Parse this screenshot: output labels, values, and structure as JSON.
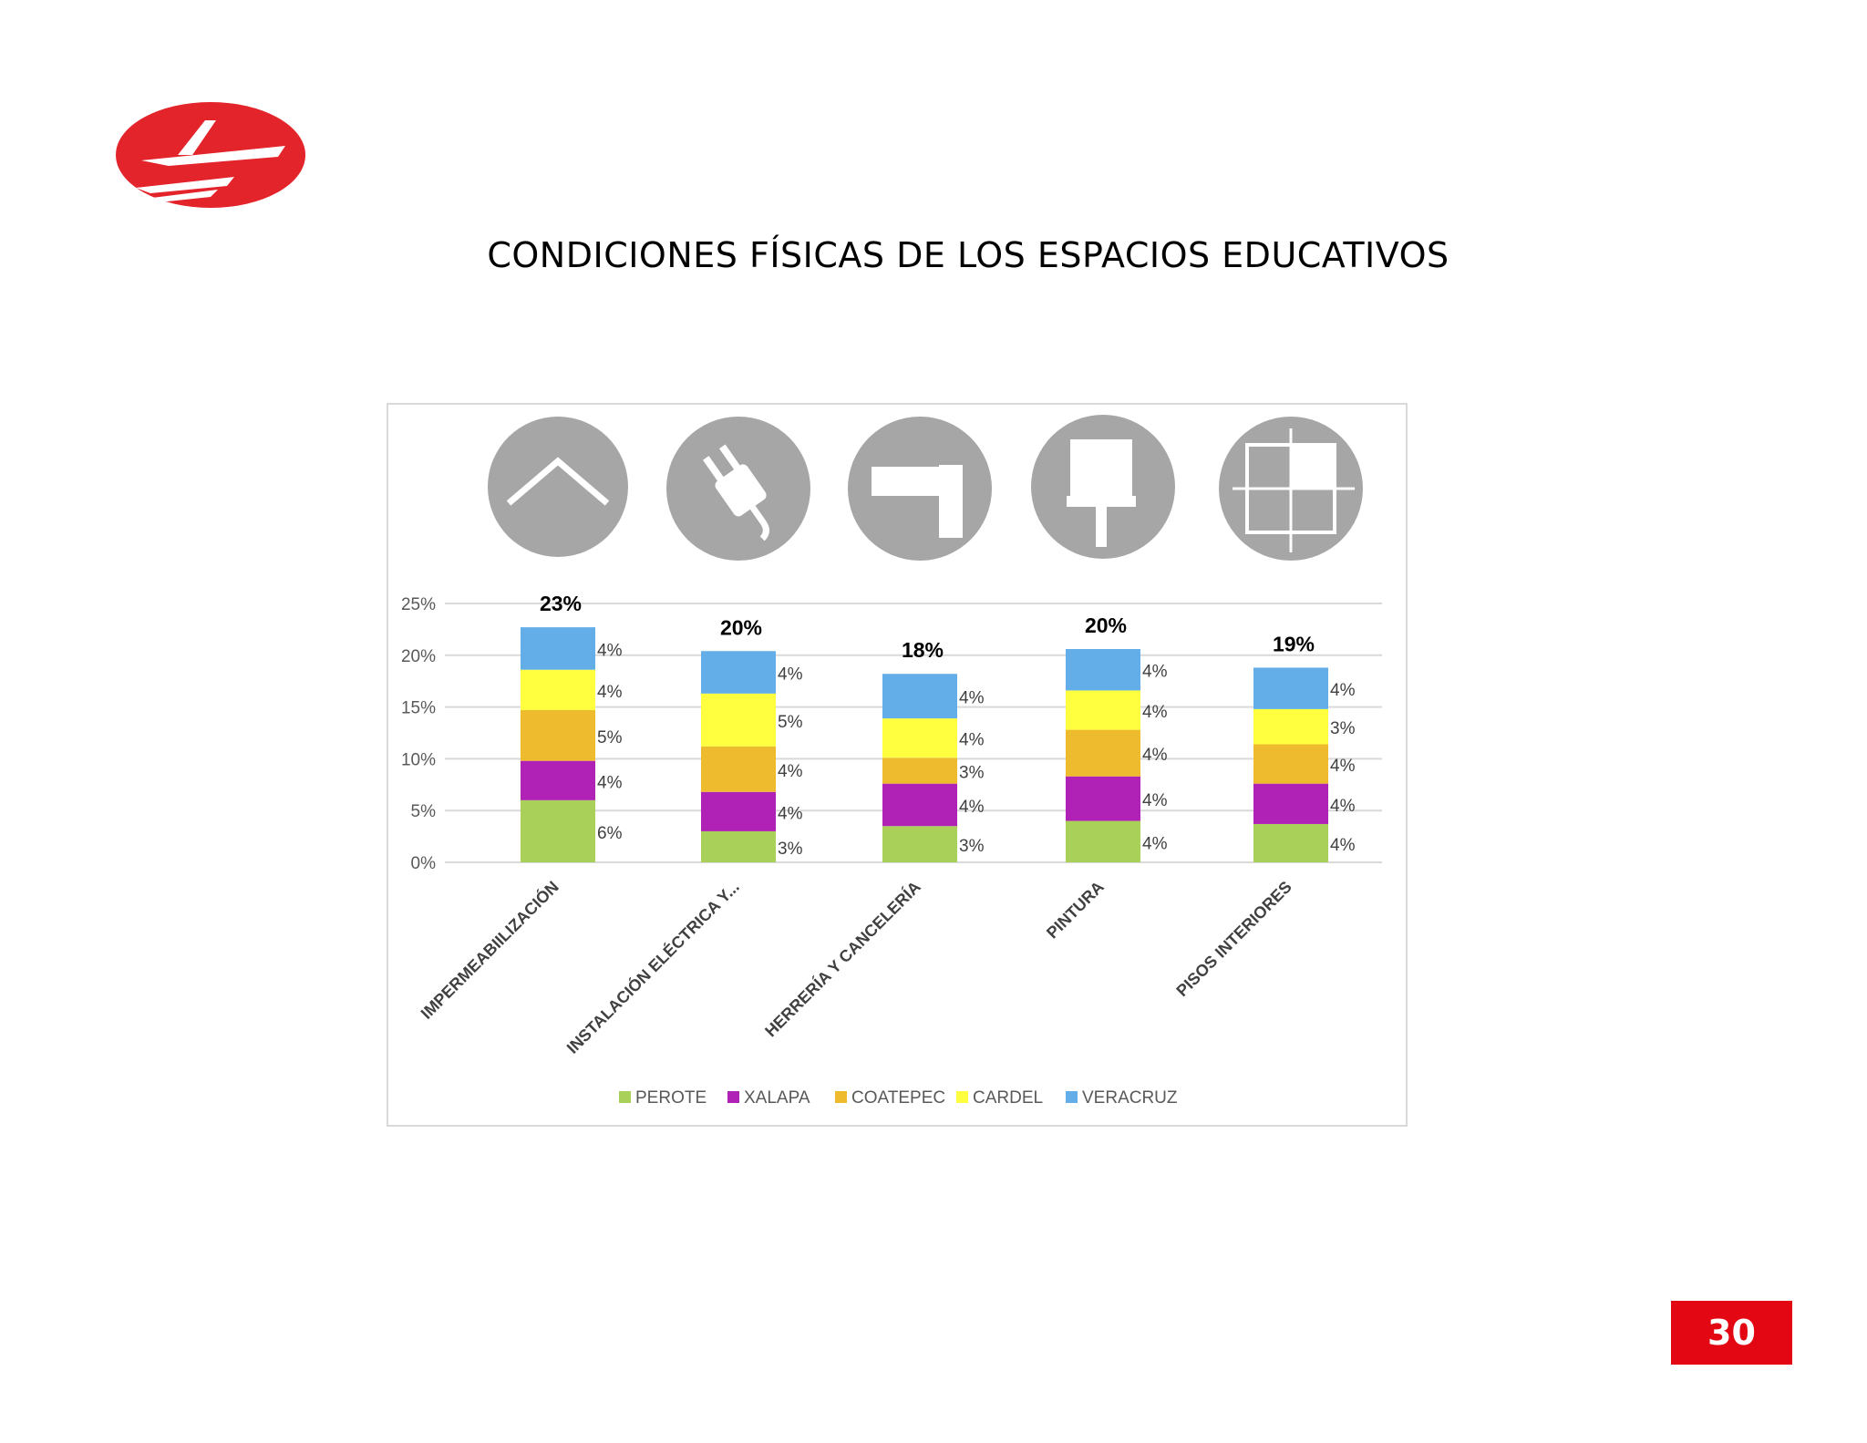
{
  "page": {
    "title": "CONDICIONES FÍSICAS DE LOS ESPACIOS EDUCATIVOS",
    "page_number": "30",
    "logo": "red-oval-F-logo"
  },
  "icons": [
    "roof-icon",
    "electric-plug-icon",
    "window-frame-icon",
    "paint-roller-icon",
    "floor-tiles-icon"
  ],
  "colors": {
    "PEROTE": "#a9d15a",
    "XALAPA": "#b021b5",
    "COATEPEC": "#eebb2f",
    "CARDEL": "#ffff3f",
    "VERACRUZ": "#63aee8",
    "icon_circle": "#a6a6a6",
    "badge": "#e30613"
  },
  "chart_data": {
    "type": "bar",
    "stacked": true,
    "categories": [
      "IMPERMEABIILIZACIÓN",
      "INSTALACIÓN ELÉCTRICA Y...",
      "HERRERÍA Y CANCELERÍA",
      "PINTURA",
      "PISOS INTERIORES"
    ],
    "series": [
      {
        "name": "PEROTE",
        "values": [
          6,
          3,
          3.5,
          4,
          3.7
        ],
        "labels": [
          "6%",
          "3%",
          "3%",
          "4%",
          "4%"
        ]
      },
      {
        "name": "XALAPA",
        "values": [
          3.8,
          3.8,
          4.1,
          4.3,
          3.9
        ],
        "labels": [
          "4%",
          "4%",
          "4%",
          "4%",
          "4%"
        ]
      },
      {
        "name": "COATEPEC",
        "values": [
          4.9,
          4.4,
          2.5,
          4.5,
          3.8
        ],
        "labels": [
          "5%",
          "4%",
          "3%",
          "4%",
          "4%"
        ]
      },
      {
        "name": "CARDEL",
        "values": [
          3.9,
          5.1,
          3.8,
          3.8,
          3.4
        ],
        "labels": [
          "4%",
          "5%",
          "4%",
          "4%",
          "3%"
        ]
      },
      {
        "name": "VERACRUZ",
        "values": [
          4.1,
          4.1,
          4.3,
          4.0,
          4.0
        ],
        "labels": [
          "4%",
          "4%",
          "4%",
          "4%",
          "4%"
        ]
      }
    ],
    "totals": [
      "23%",
      "20%",
      "18%",
      "20%",
      "19%"
    ],
    "ylim": [
      0,
      25
    ],
    "yticks": [
      "0%",
      "5%",
      "10%",
      "15%",
      "20%",
      "25%"
    ],
    "legend_position": "bottom",
    "grid": true
  }
}
